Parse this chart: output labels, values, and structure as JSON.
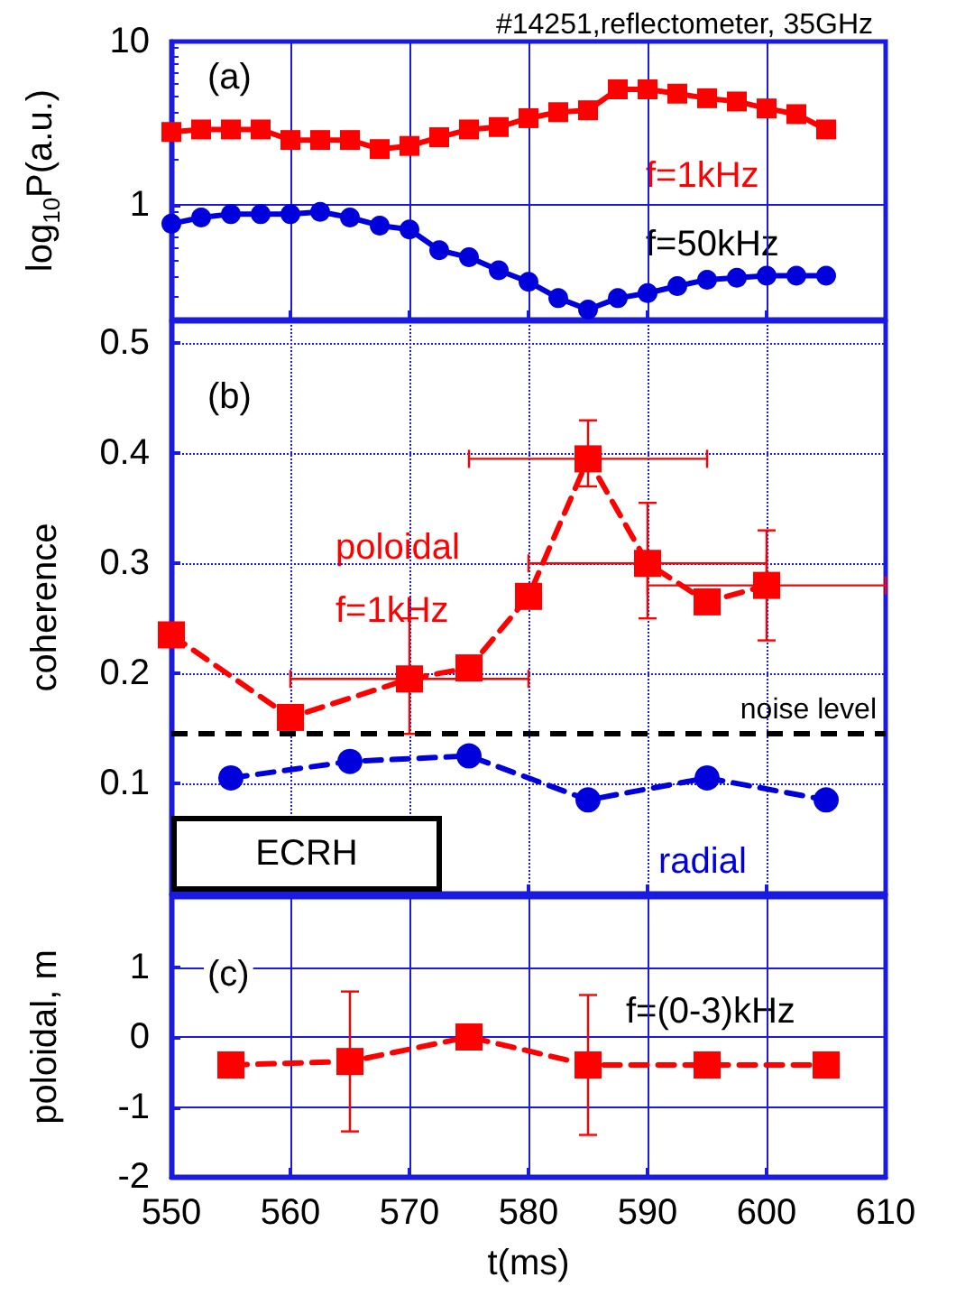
{
  "chart_data": [
    {
      "type": "line",
      "title": "#14251,reflectometer, 35GHz",
      "ylabel": "log$_{10}$P(a.u.)",
      "annotations": [
        "(a)"
      ],
      "x": [
        550,
        552.5,
        555,
        557.5,
        560,
        562.5,
        565,
        567.5,
        570,
        572.5,
        575,
        577.5,
        580,
        582.5,
        585,
        587.5,
        590,
        592.5,
        595,
        597.5,
        600,
        602.5,
        605
      ],
      "series": [
        {
          "name": "f=1kHz",
          "color": "#ff0000",
          "marker": "square",
          "values": [
            2.8,
            2.9,
            2.9,
            2.9,
            2.5,
            2.5,
            2.5,
            2.2,
            2.3,
            2.6,
            2.9,
            3.0,
            3.4,
            3.7,
            3.8,
            5.1,
            5.1,
            4.8,
            4.5,
            4.3,
            3.9,
            3.6,
            2.9
          ]
        },
        {
          "name": "f=50kHz",
          "color": "#0000dd",
          "marker": "circle",
          "values": [
            0.77,
            0.84,
            0.88,
            0.88,
            0.88,
            0.91,
            0.84,
            0.75,
            0.71,
            0.53,
            0.48,
            0.4,
            0.34,
            0.27,
            0.23,
            0.27,
            0.29,
            0.32,
            0.35,
            0.36,
            0.37,
            0.37,
            0.37
          ]
        }
      ],
      "log": "y",
      "xlim": [
        550,
        610
      ],
      "xticks": [
        550,
        560,
        570,
        580,
        590,
        600,
        610
      ],
      "ylim": [
        0.2,
        10
      ],
      "yticks": [
        1,
        10
      ],
      "grid": true,
      "line_style": "solid",
      "tick_labels": "y"
    },
    {
      "type": "line",
      "ylabel": "coherence",
      "annotations": [
        "(b)",
        "ECRH"
      ],
      "series": [
        {
          "name": "poloidal f=1kHz",
          "color": "#ff0000",
          "marker": "square",
          "line_style": "dashed",
          "x": [
            550,
            560,
            570,
            575,
            580,
            585,
            590,
            595,
            600
          ],
          "values": [
            0.235,
            0.16,
            0.195,
            0.205,
            0.27,
            0.395,
            0.3,
            0.265,
            0.28
          ],
          "errors": [
            null,
            null,
            [
              0.145,
              0.25
            ],
            null,
            null,
            [
              0.37,
              0.43
            ],
            [
              0.25,
              0.355
            ],
            null,
            [
              0.23,
              0.33
            ]
          ],
          "xerrors": [
            null,
            null,
            [
              560,
              580
            ],
            null,
            null,
            [
              575,
              595
            ],
            [
              580,
              600
            ],
            null,
            [
              590,
              610
            ]
          ]
        },
        {
          "name": "radial",
          "color": "#0000dd",
          "marker": "circle",
          "line_style": "dashed",
          "x": [
            555,
            565,
            575,
            585,
            595,
            605
          ],
          "values": [
            0.105,
            0.12,
            0.125,
            0.085,
            0.105,
            0.085
          ]
        }
      ],
      "ref_lines": [
        {
          "axis": "y",
          "value": 0.145,
          "label": "noise level",
          "color": "#000000",
          "line_style": "dashed"
        }
      ],
      "xlim": [
        550,
        610
      ],
      "xticks": [
        550,
        560,
        570,
        580,
        590,
        600,
        610
      ],
      "ylim": [
        0,
        0.52
      ],
      "yticks": [
        0.1,
        0.2,
        0.3,
        0.4,
        0.5
      ],
      "grid": true,
      "legend": false,
      "tick_labels": "y"
    },
    {
      "type": "line",
      "xlabel": "t(ms)",
      "ylabel": "poloidal, m",
      "annotations": [
        "(c)"
      ],
      "x": [
        555,
        565,
        575,
        585,
        595,
        605
      ],
      "series": [
        {
          "name": "f=(0-3)kHz",
          "color": "#ff0000",
          "values": [
            -0.4,
            -0.35,
            0.0,
            -0.4,
            -0.4,
            -0.4
          ],
          "errors": [
            null,
            1.0,
            null,
            1.0,
            null,
            null
          ]
        }
      ],
      "marker": "square",
      "line_style": "dashed",
      "xlim": [
        550,
        610
      ],
      "xticks": [
        550,
        560,
        570,
        580,
        590,
        600,
        610
      ],
      "ylim": [
        -2,
        2
      ],
      "yticks": [
        -2,
        -1,
        0,
        1
      ],
      "grid": true,
      "legend": false
    }
  ]
}
